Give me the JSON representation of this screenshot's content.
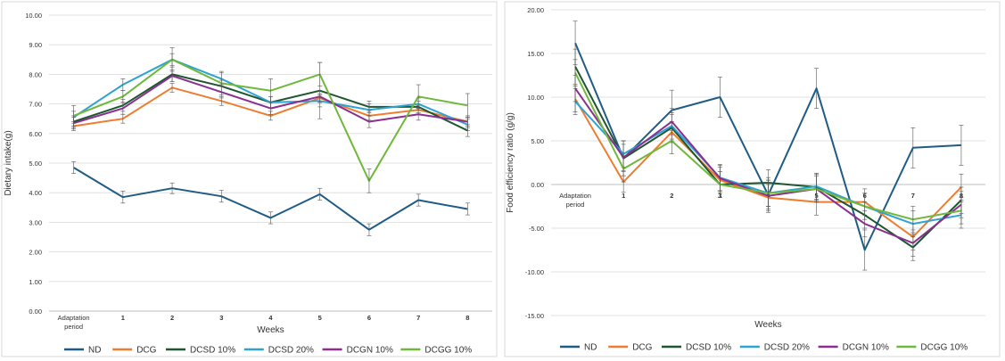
{
  "chart_data": [
    {
      "type": "line",
      "title": "",
      "xlabel": "Weeks",
      "ylabel": "Dietary intake(g)",
      "ylim": [
        0,
        10
      ],
      "yticks": [
        "0.00",
        "1.00",
        "2.00",
        "3.00",
        "4.00",
        "5.00",
        "6.00",
        "7.00",
        "8.00",
        "9.00",
        "10.00"
      ],
      "categories": [
        "Adaptation period",
        "1",
        "2",
        "3",
        "4",
        "5",
        "6",
        "7",
        "8"
      ],
      "grid": true,
      "legend": "bottom",
      "series": [
        {
          "name": "ND",
          "color": "#1f5c85",
          "values": [
            4.85,
            3.85,
            4.15,
            3.88,
            3.15,
            3.95,
            2.75,
            3.75,
            3.45
          ],
          "errors": [
            0.2,
            0.2,
            0.18,
            0.2,
            0.2,
            0.2,
            0.2,
            0.2,
            0.2
          ]
        },
        {
          "name": "DCG",
          "color": "#ed7d31",
          "values": [
            6.25,
            6.5,
            7.55,
            7.1,
            6.6,
            7.2,
            6.6,
            6.8,
            6.4
          ],
          "errors": [
            0.15,
            0.15,
            0.15,
            0.15,
            0.15,
            0.15,
            0.15,
            0.15,
            0.15
          ]
        },
        {
          "name": "DCSD 10%",
          "color": "#1e5631",
          "values": [
            6.4,
            6.95,
            8.0,
            7.6,
            7.05,
            7.45,
            6.9,
            6.9,
            6.1
          ],
          "errors": [
            0.2,
            0.2,
            0.25,
            0.2,
            0.2,
            0.95,
            0.2,
            0.2,
            0.2
          ]
        },
        {
          "name": "DCSD 20%",
          "color": "#2ea3d1",
          "values": [
            6.55,
            7.65,
            8.5,
            7.85,
            7.05,
            7.1,
            6.8,
            7.0,
            6.3
          ],
          "errors": [
            0.2,
            0.2,
            0.2,
            0.2,
            0.2,
            0.2,
            0.2,
            0.2,
            0.2
          ]
        },
        {
          "name": "DCGN 10%",
          "color": "#8a2f8f",
          "values": [
            6.35,
            6.85,
            7.95,
            7.4,
            6.85,
            7.25,
            6.4,
            6.65,
            6.4
          ],
          "errors": [
            0.2,
            0.2,
            0.2,
            0.2,
            0.2,
            0.2,
            0.2,
            0.2,
            0.2
          ]
        },
        {
          "name": "DCGG 10%",
          "color": "#6fb83b",
          "values": [
            6.6,
            7.25,
            8.5,
            7.7,
            7.45,
            8.0,
            4.4,
            7.25,
            6.95
          ],
          "errors": [
            0.35,
            0.2,
            0.4,
            0.4,
            0.4,
            0.4,
            0.4,
            0.4,
            0.4
          ]
        }
      ]
    },
    {
      "type": "line",
      "title": "",
      "xlabel": "Weeks",
      "ylabel": "Food efficiency ratio (g/g)",
      "ylim": [
        -15,
        20
      ],
      "yticks": [
        "-15.00",
        "-10.00",
        "-5.00",
        "0.00",
        "5.00",
        "10.00",
        "15.00",
        "20.00"
      ],
      "categories": [
        "Adaptation period",
        "1",
        "2",
        "3",
        "4",
        "5",
        "6",
        "7",
        "8"
      ],
      "grid": true,
      "legend": "bottom",
      "series": [
        {
          "name": "ND",
          "color": "#1f5c85",
          "values": [
            16.2,
            3.0,
            8.5,
            10.0,
            -1.2,
            11.0,
            -7.5,
            4.2,
            4.5
          ],
          "errors": [
            2.5,
            2.0,
            2.3,
            2.3,
            2.0,
            2.3,
            2.3,
            2.3,
            2.3
          ]
        },
        {
          "name": "DCG",
          "color": "#ed7d31",
          "values": [
            9.8,
            0.3,
            6.0,
            0.5,
            -1.5,
            -2.0,
            -2.0,
            -6.0,
            -0.3
          ],
          "errors": [
            1.5,
            1.2,
            1.2,
            1.5,
            1.5,
            1.5,
            1.5,
            1.5,
            1.5
          ]
        },
        {
          "name": "DCSD 10%",
          "color": "#1e5631",
          "values": [
            13.5,
            3.0,
            6.5,
            0.0,
            0.2,
            -0.3,
            -3.5,
            -7.2,
            -1.8
          ],
          "errors": [
            2.0,
            2.0,
            1.5,
            1.5,
            1.5,
            1.5,
            1.5,
            1.5,
            1.5
          ]
        },
        {
          "name": "DCSD 20%",
          "color": "#2ea3d1",
          "values": [
            9.5,
            3.5,
            6.7,
            0.8,
            -1.0,
            -0.2,
            -2.5,
            -4.5,
            -3.5
          ],
          "errors": [
            1.5,
            1.5,
            1.5,
            1.5,
            1.5,
            1.5,
            1.5,
            1.5,
            1.5
          ]
        },
        {
          "name": "DCGN 10%",
          "color": "#8a2f8f",
          "values": [
            11.0,
            3.1,
            7.2,
            0.7,
            -1.3,
            -0.5,
            -4.5,
            -6.7,
            -2.3
          ],
          "errors": [
            1.5,
            1.5,
            1.5,
            1.5,
            1.5,
            1.5,
            1.5,
            1.5,
            1.5
          ]
        },
        {
          "name": "DCGG 10%",
          "color": "#6fb83b",
          "values": [
            12.8,
            1.8,
            5.0,
            0.0,
            -1.0,
            -0.5,
            -2.5,
            -4.0,
            -3.0
          ],
          "errors": [
            1.5,
            1.5,
            1.5,
            1.5,
            1.5,
            1.5,
            1.5,
            1.5,
            1.5
          ]
        }
      ]
    }
  ]
}
